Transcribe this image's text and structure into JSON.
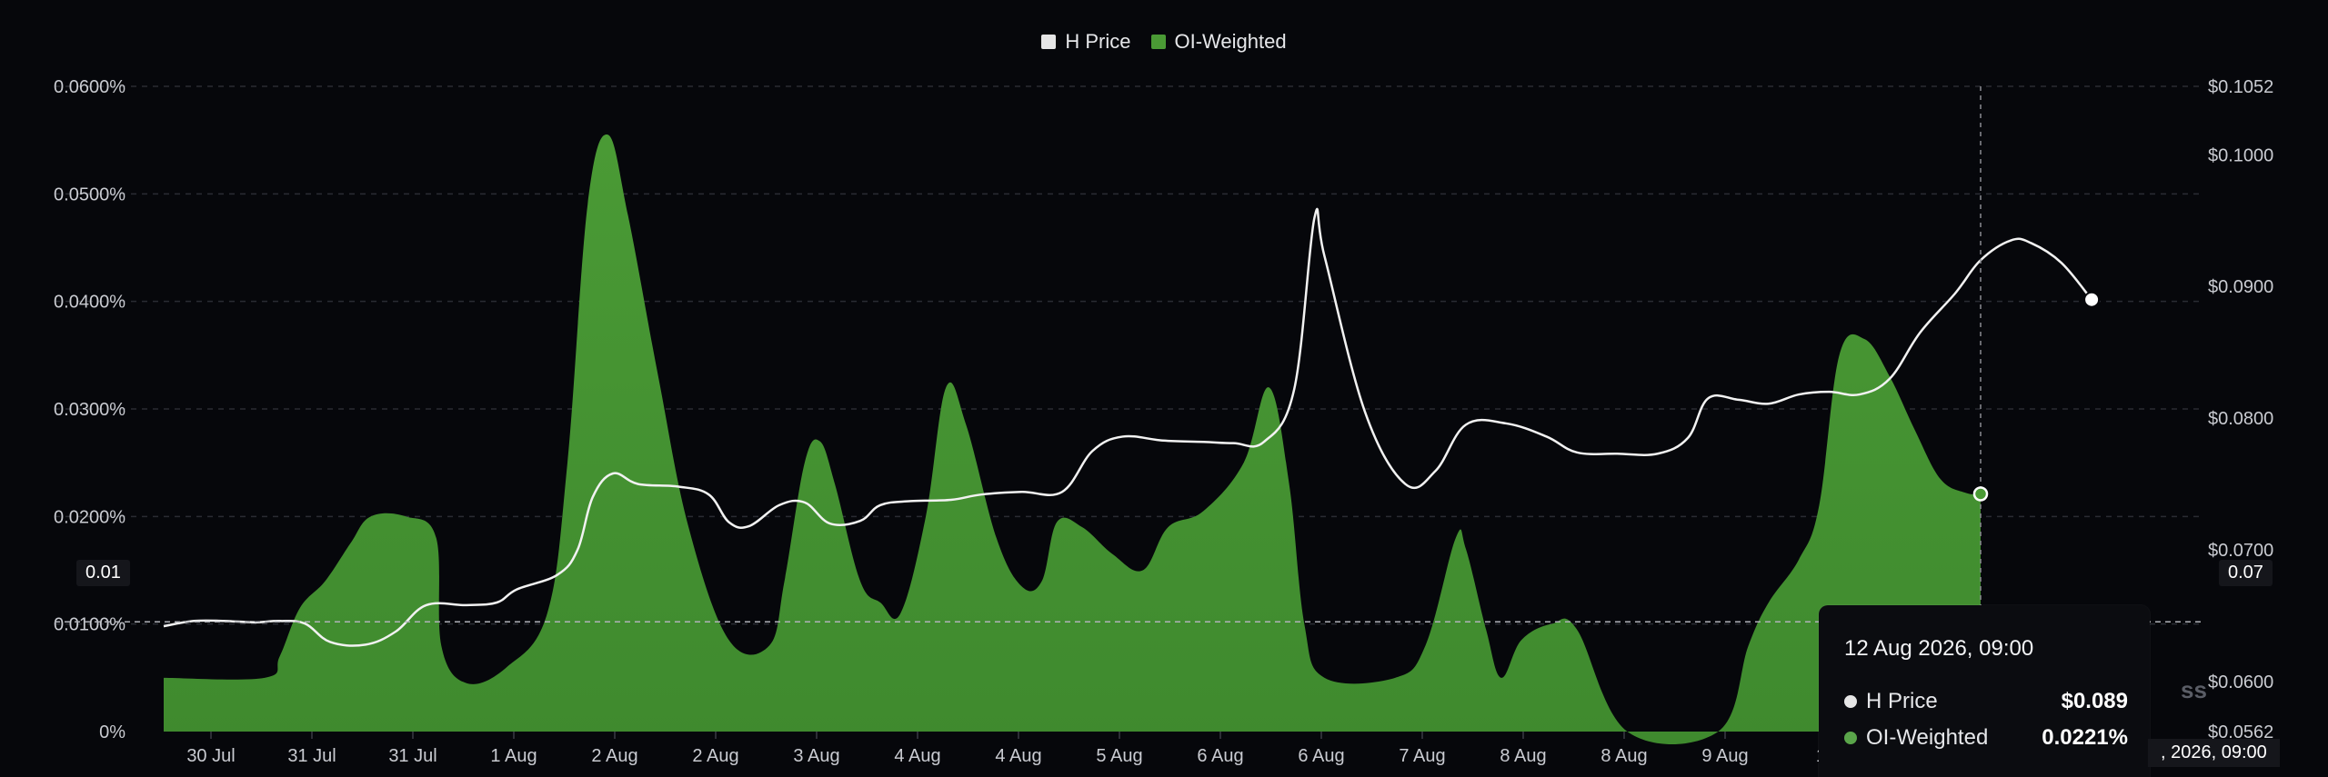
{
  "legend": [
    {
      "label": "H Price",
      "color": "#e6e6e6"
    },
    {
      "label": "OI-Weighted",
      "color": "#4a9a35"
    }
  ],
  "chart_data": {
    "type": "area",
    "categories": [
      "30 Jul",
      "31 Jul",
      "31 Jul",
      "1 Aug",
      "2 Aug",
      "2 Aug",
      "3 Aug",
      "4 Aug",
      "4 Aug",
      "5 Aug",
      "6 Aug",
      "6 Aug",
      "7 Aug",
      "8 Aug",
      "8 Aug",
      "9 Aug",
      "10"
    ],
    "left_axis": {
      "ticks": [
        "0.0600%",
        "0.0500%",
        "0.0400%",
        "0.0300%",
        "0.0200%",
        "0.0100%",
        "0%"
      ],
      "ylim": [
        0,
        0.06
      ],
      "unit": "%"
    },
    "right_axis": {
      "ticks": [
        "$0.1052",
        "$0.1000",
        "$0.0900",
        "$0.0800",
        "$0.0700",
        "$0.0600",
        "$0.0562"
      ],
      "ylim": [
        0.0562,
        0.1052
      ]
    },
    "series": [
      {
        "name": "OI-Weighted",
        "kind": "area",
        "axis": "left",
        "color": "#4a9a35",
        "points": [
          [
            0,
            0.005
          ],
          [
            1.0,
            0.005
          ],
          [
            1.15,
            0.007
          ],
          [
            1.35,
            0.0115
          ],
          [
            1.6,
            0.014
          ],
          [
            1.85,
            0.0175
          ],
          [
            2.05,
            0.02
          ],
          [
            2.4,
            0.02
          ],
          [
            2.7,
            0.018
          ],
          [
            2.75,
            0.008
          ],
          [
            3.0,
            0.0045
          ],
          [
            3.4,
            0.006
          ],
          [
            3.8,
            0.011
          ],
          [
            4.0,
            0.025
          ],
          [
            4.2,
            0.049
          ],
          [
            4.4,
            0.0555
          ],
          [
            4.6,
            0.048
          ],
          [
            4.9,
            0.033
          ],
          [
            5.2,
            0.019
          ],
          [
            5.6,
            0.0085
          ],
          [
            6.0,
            0.008
          ],
          [
            6.15,
            0.014
          ],
          [
            6.35,
            0.025
          ],
          [
            6.5,
            0.027
          ],
          [
            6.65,
            0.023
          ],
          [
            6.9,
            0.014
          ],
          [
            7.1,
            0.012
          ],
          [
            7.3,
            0.011
          ],
          [
            7.55,
            0.02
          ],
          [
            7.75,
            0.032
          ],
          [
            7.95,
            0.0285
          ],
          [
            8.25,
            0.018
          ],
          [
            8.5,
            0.0135
          ],
          [
            8.7,
            0.014
          ],
          [
            8.85,
            0.0195
          ],
          [
            9.1,
            0.019
          ],
          [
            9.4,
            0.0165
          ],
          [
            9.7,
            0.015
          ],
          [
            9.95,
            0.019
          ],
          [
            10.3,
            0.0205
          ],
          [
            10.7,
            0.025
          ],
          [
            10.95,
            0.032
          ],
          [
            11.15,
            0.023
          ],
          [
            11.3,
            0.01
          ],
          [
            11.5,
            0.005
          ],
          [
            12.2,
            0.005
          ],
          [
            12.5,
            0.008
          ],
          [
            12.8,
            0.018
          ],
          [
            12.9,
            0.017
          ],
          [
            13.1,
            0.0095
          ],
          [
            13.25,
            0.005
          ],
          [
            13.45,
            0.0085
          ],
          [
            13.75,
            0.01
          ],
          [
            14.0,
            0.0095
          ],
          [
            14.5,
            0.0
          ],
          [
            15.4,
            0.0
          ],
          [
            15.7,
            0.008
          ],
          [
            15.9,
            0.012
          ],
          [
            16.2,
            0.016
          ],
          [
            16.4,
            0.021
          ],
          [
            16.6,
            0.035
          ],
          [
            16.85,
            0.0365
          ],
          [
            17.1,
            0.033
          ],
          [
            17.35,
            0.028
          ],
          [
            17.6,
            0.0235
          ],
          [
            17.85,
            0.0222
          ],
          [
            18.0,
            0.0221
          ]
        ]
      },
      {
        "name": "H Price",
        "kind": "line",
        "axis": "right",
        "color": "#f2f2f2",
        "points": [
          [
            0,
            0.0642
          ],
          [
            0.3,
            0.0646
          ],
          [
            0.6,
            0.0646
          ],
          [
            0.9,
            0.0645
          ],
          [
            1.15,
            0.0646
          ],
          [
            1.4,
            0.0644
          ],
          [
            1.65,
            0.063
          ],
          [
            2.0,
            0.0628
          ],
          [
            2.3,
            0.0638
          ],
          [
            2.6,
            0.0658
          ],
          [
            3.0,
            0.0658
          ],
          [
            3.3,
            0.066
          ],
          [
            3.5,
            0.067
          ],
          [
            3.9,
            0.0681
          ],
          [
            4.1,
            0.07
          ],
          [
            4.25,
            0.074
          ],
          [
            4.45,
            0.0758
          ],
          [
            4.7,
            0.075
          ],
          [
            5.1,
            0.0748
          ],
          [
            5.4,
            0.0742
          ],
          [
            5.6,
            0.0721
          ],
          [
            5.8,
            0.0718
          ],
          [
            6.1,
            0.0734
          ],
          [
            6.35,
            0.0736
          ],
          [
            6.6,
            0.072
          ],
          [
            6.9,
            0.0722
          ],
          [
            7.1,
            0.0734
          ],
          [
            7.4,
            0.0737
          ],
          [
            7.8,
            0.0738
          ],
          [
            8.1,
            0.0742
          ],
          [
            8.5,
            0.0744
          ],
          [
            8.9,
            0.0744
          ],
          [
            9.2,
            0.0775
          ],
          [
            9.5,
            0.0786
          ],
          [
            9.9,
            0.0783
          ],
          [
            10.3,
            0.0782
          ],
          [
            10.6,
            0.0781
          ],
          [
            10.9,
            0.0782
          ],
          [
            11.2,
            0.0822
          ],
          [
            11.4,
            0.0952
          ],
          [
            11.5,
            0.0923
          ],
          [
            11.9,
            0.0805
          ],
          [
            12.3,
            0.075
          ],
          [
            12.6,
            0.076
          ],
          [
            12.9,
            0.0795
          ],
          [
            13.3,
            0.0796
          ],
          [
            13.7,
            0.0786
          ],
          [
            14.0,
            0.0774
          ],
          [
            14.4,
            0.0773
          ],
          [
            14.8,
            0.0773
          ],
          [
            15.1,
            0.0785
          ],
          [
            15.3,
            0.0815
          ],
          [
            15.6,
            0.0814
          ],
          [
            15.9,
            0.0811
          ],
          [
            16.2,
            0.0818
          ],
          [
            16.5,
            0.082
          ],
          [
            16.8,
            0.0818
          ],
          [
            17.1,
            0.083
          ],
          [
            17.4,
            0.0865
          ],
          [
            17.75,
            0.0895
          ],
          [
            18.0,
            0.092
          ],
          [
            18.3,
            0.0935
          ],
          [
            18.5,
            0.0933
          ],
          [
            18.8,
            0.0918
          ],
          [
            19.1,
            0.089
          ]
        ]
      }
    ],
    "crosshair": {
      "left_value": "0.01",
      "right_value": "0.07"
    },
    "tooltip": {
      "title": "12 Aug 2026, 09:00",
      "rows": [
        {
          "label": "H Price",
          "value": "$0.089",
          "color": "#e6e6e6"
        },
        {
          "label": "OI-Weighted",
          "value": "0.0221%",
          "color": "#5aa54a"
        }
      ]
    },
    "x_badge": ", 2026, 09:00",
    "watermark": "ss"
  }
}
